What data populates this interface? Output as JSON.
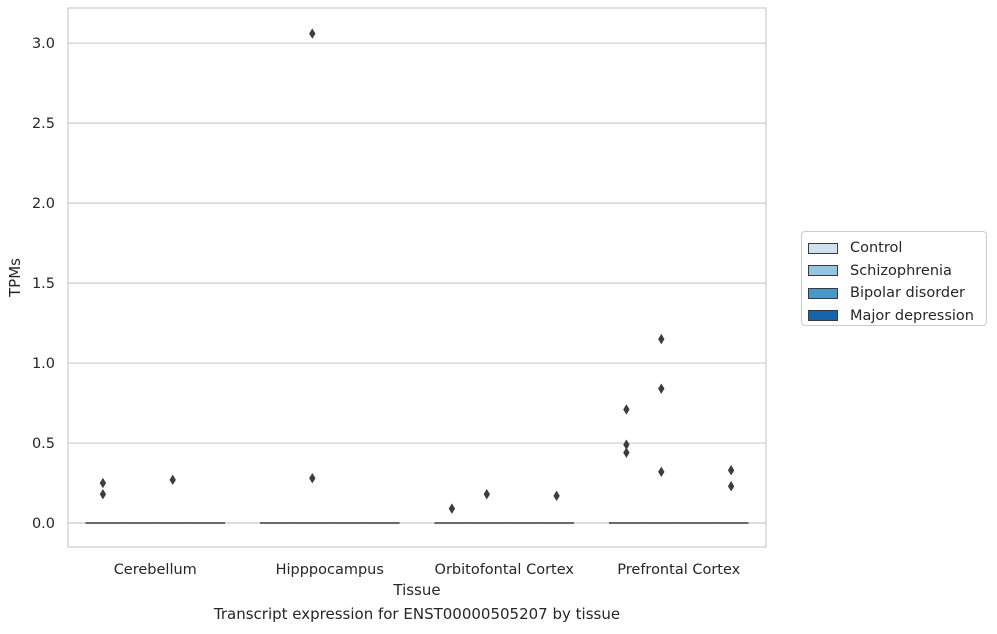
{
  "caption": "Transcript expression for ENST00000505207 by tissue",
  "chart_data": {
    "type": "box",
    "title": "",
    "xlabel": "Tissue",
    "ylabel": "TPMs",
    "ylim": [
      -0.15,
      3.22
    ],
    "yticks": [
      0.0,
      0.5,
      1.0,
      1.5,
      2.0,
      2.5,
      3.0
    ],
    "ytick_labels": [
      "0.0",
      "0.5",
      "1.0",
      "1.5",
      "2.0",
      "2.5",
      "3.0"
    ],
    "grid": true,
    "legend_position": "right",
    "categories": [
      "Cerebellum",
      "Hipppocampus",
      "Orbitofontal Cortex",
      "Prefrontal Cortex"
    ],
    "series": [
      {
        "name": "Control",
        "color": "#d0e1f2",
        "medians": [
          0,
          0,
          0,
          0
        ],
        "outliers": [
          [
            0.25,
            0.18
          ],
          [],
          [
            0.09
          ],
          [
            0.71,
            0.49,
            0.44
          ]
        ]
      },
      {
        "name": "Schizophrenia",
        "color": "#94c4df",
        "medians": [
          0,
          0,
          0,
          0
        ],
        "outliers": [
          [],
          [
            0.28,
            3.06
          ],
          [
            0.18
          ],
          [
            1.15,
            0.84,
            0.32
          ]
        ]
      },
      {
        "name": "Bipolar disorder",
        "color": "#4a98c9",
        "medians": [
          0,
          0,
          0,
          0
        ],
        "outliers": [
          [
            0.27
          ],
          [],
          [],
          []
        ]
      },
      {
        "name": "Major depression",
        "color": "#1764ab",
        "medians": [
          0,
          0,
          0,
          0
        ],
        "outliers": [
          [],
          [],
          [
            0.17
          ],
          [
            0.33,
            0.23
          ]
        ]
      }
    ]
  }
}
